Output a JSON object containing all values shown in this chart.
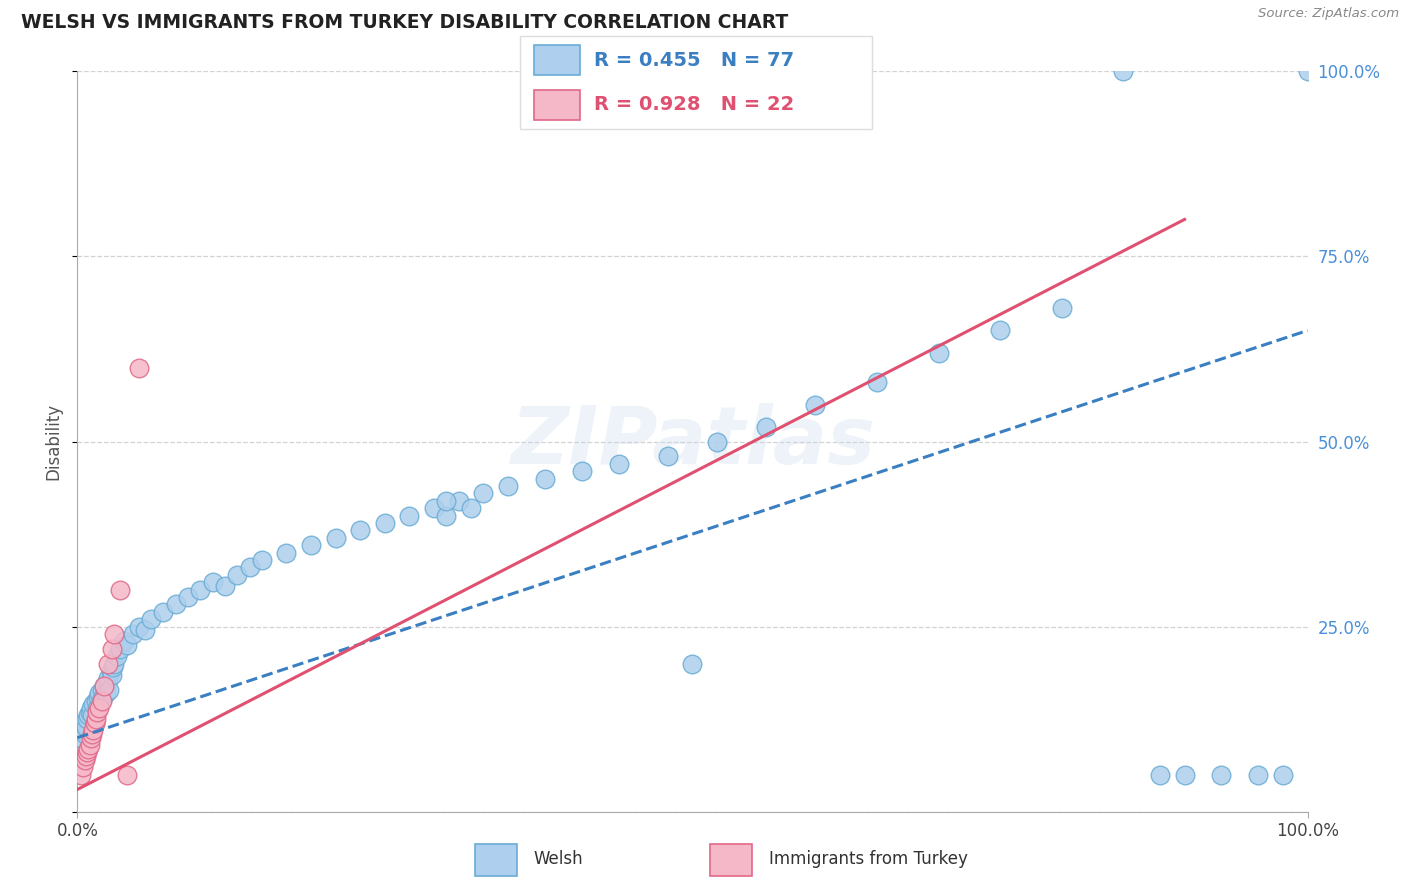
{
  "title": "WELSH VS IMMIGRANTS FROM TURKEY DISABILITY CORRELATION CHART",
  "source": "Source: ZipAtlas.com",
  "ylabel": "Disability",
  "watermark": "ZIPatlas",
  "welsh_color": "#aecfed",
  "welsh_edge_color": "#6aadd5",
  "turkey_color": "#f5b8c8",
  "turkey_edge_color": "#e06888",
  "welsh_line_color": "#3a7fc1",
  "turkey_line_color": "#e05070",
  "background_color": "#ffffff",
  "grid_color": "#c8c8c8",
  "r_welsh": 0.455,
  "n_welsh": 77,
  "r_turkey": 0.928,
  "n_turkey": 22,
  "xlim": [
    0,
    100
  ],
  "ylim": [
    0,
    100
  ],
  "welsh_x": [
    0.3,
    0.4,
    0.5,
    0.6,
    0.7,
    0.8,
    0.9,
    1.0,
    1.1,
    1.2,
    1.3,
    1.4,
    1.5,
    1.6,
    1.7,
    1.8,
    1.9,
    2.0,
    2.1,
    2.2,
    2.3,
    2.4,
    2.5,
    2.6,
    2.7,
    2.8,
    2.9,
    3.0,
    3.2,
    3.5,
    3.8,
    4.0,
    4.5,
    5.0,
    5.5,
    6.0,
    7.0,
    8.0,
    9.0,
    10.0,
    11.0,
    12.0,
    13.0,
    14.0,
    15.0,
    17.0,
    19.0,
    21.0,
    23.0,
    25.0,
    27.0,
    29.0,
    31.0,
    33.0,
    35.0,
    38.0,
    41.0,
    44.0,
    48.0,
    52.0,
    56.0,
    60.0,
    65.0,
    70.0,
    75.0,
    80.0,
    85.0,
    88.0,
    90.0,
    93.0,
    96.0,
    98.0,
    100.0,
    30.0,
    30.0,
    32.0,
    50.0
  ],
  "welsh_y": [
    10.0,
    11.0,
    12.0,
    10.5,
    11.5,
    12.5,
    13.0,
    13.5,
    14.0,
    13.0,
    14.5,
    12.0,
    15.0,
    14.0,
    15.5,
    16.0,
    15.0,
    16.5,
    15.5,
    17.0,
    16.0,
    17.5,
    18.0,
    16.5,
    19.0,
    18.5,
    19.5,
    20.0,
    21.0,
    22.0,
    23.0,
    22.5,
    24.0,
    25.0,
    24.5,
    26.0,
    27.0,
    28.0,
    29.0,
    30.0,
    31.0,
    30.5,
    32.0,
    33.0,
    34.0,
    35.0,
    36.0,
    37.0,
    38.0,
    39.0,
    40.0,
    41.0,
    42.0,
    43.0,
    44.0,
    45.0,
    46.0,
    47.0,
    48.0,
    50.0,
    52.0,
    55.0,
    58.0,
    62.0,
    65.0,
    68.0,
    100.0,
    5.0,
    5.0,
    5.0,
    5.0,
    5.0,
    100.0,
    40.0,
    42.0,
    41.0,
    20.0
  ],
  "turkey_x": [
    0.3,
    0.5,
    0.6,
    0.7,
    0.8,
    0.9,
    1.0,
    1.1,
    1.2,
    1.3,
    1.4,
    1.5,
    1.6,
    1.8,
    2.0,
    2.2,
    2.5,
    2.8,
    3.0,
    3.5,
    4.0,
    5.0
  ],
  "turkey_y": [
    5.0,
    6.0,
    7.0,
    7.5,
    8.0,
    8.5,
    9.0,
    10.0,
    10.5,
    11.0,
    12.0,
    12.5,
    13.5,
    14.0,
    15.0,
    17.0,
    20.0,
    22.0,
    24.0,
    30.0,
    5.0,
    60.0
  ],
  "welsh_line_x0": 0,
  "welsh_line_x1": 100,
  "welsh_line_y0": 10,
  "welsh_line_y1": 65,
  "turkey_line_x0": 0,
  "turkey_line_x1": 90,
  "turkey_line_y0": 3,
  "turkey_line_y1": 80
}
